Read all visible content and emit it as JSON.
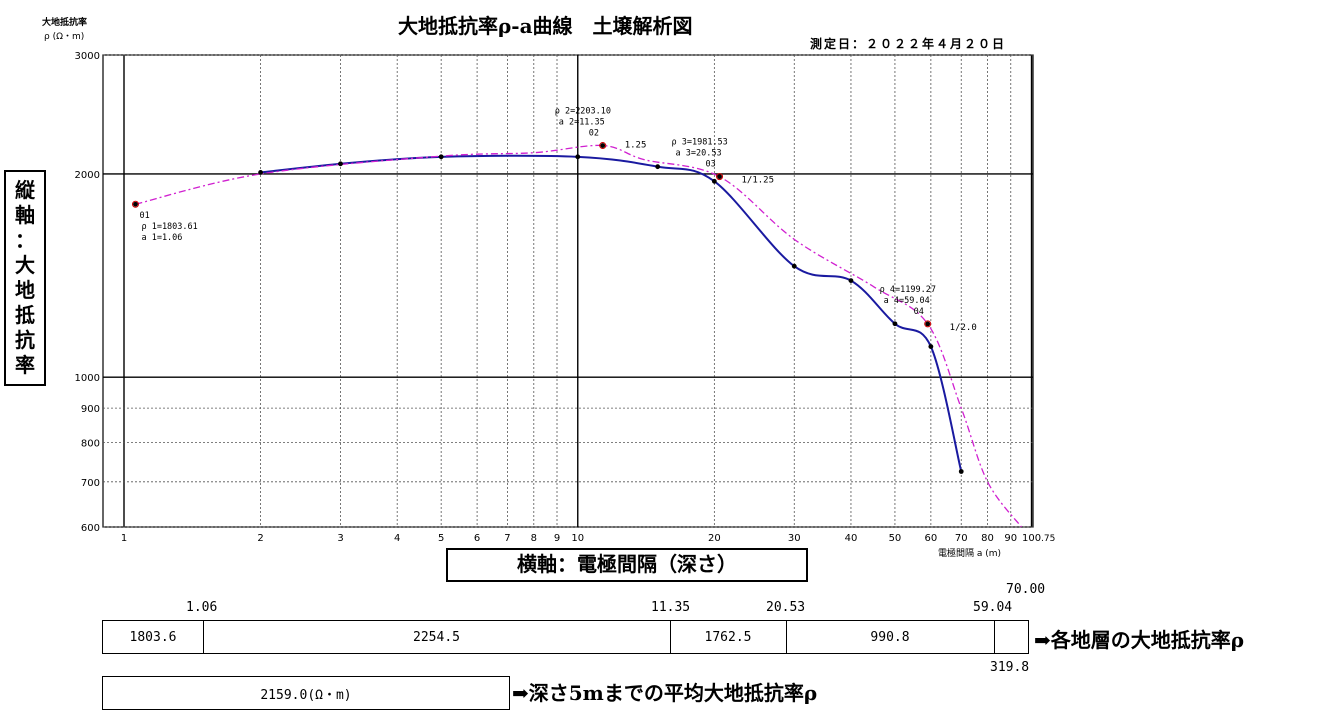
{
  "header": {
    "title": "大地抵抗率ρ-a曲線　土壌解析図",
    "date": "測定日：２０２２年４月２０日",
    "unit_top_line1": "大地抵抗率",
    "unit_top_line2": "ρ (Ω・m)",
    "x_unit": "電極間隔 a (m)"
  },
  "axis_boxes": {
    "vertical_chars": [
      "縦",
      "軸",
      "：",
      "大",
      "地",
      "抵",
      "抗",
      "率"
    ],
    "horizontal": "横軸：電極間隔（深さ）"
  },
  "chart_data": {
    "type": "line",
    "x_scale": "log",
    "y_scale": "log",
    "xlim": [
      1,
      100.75
    ],
    "ylim": [
      600,
      3000
    ],
    "x_ticks": [
      1,
      2,
      3,
      4,
      5,
      6,
      7,
      8,
      9,
      10,
      20,
      30,
      40,
      50,
      60,
      70,
      80,
      90,
      100
    ],
    "x_tick_labels": [
      "1",
      "2",
      "3",
      "4",
      "5",
      "6",
      "7",
      "8",
      "9",
      "10",
      "20",
      "30",
      "40",
      "50",
      "60",
      "70",
      "80",
      "90",
      "100"
    ],
    "x_end_label": ".75",
    "y_ticks": [
      600,
      700,
      800,
      900,
      1000,
      2000,
      3000
    ],
    "y_tick_labels": [
      "600",
      "700",
      "800",
      "900",
      "1000",
      "2000",
      "3000"
    ],
    "grid": true,
    "series": [
      {
        "style": "solid-blue",
        "color": "#1a1aa0",
        "x": [
          2.0,
          3.0,
          5.0,
          10.0,
          15.0,
          20.0,
          30.0,
          40.0,
          50.0,
          60.0,
          70.0
        ],
        "y": [
          2010,
          2070,
          2120,
          2120,
          2050,
          1950,
          1460,
          1390,
          1200,
          1110,
          725
        ]
      },
      {
        "style": "dashed-magenta",
        "color": "#d020d0",
        "x": [
          1.06,
          2.0,
          5.0,
          8.0,
          11.35,
          14.0,
          20.53,
          30.0,
          45.0,
          59.04,
          70.0,
          80.0,
          95.0
        ],
        "y": [
          1803.61,
          2000,
          2125,
          2150,
          2203.1,
          2100,
          1981.53,
          1600,
          1360,
          1199.27,
          900,
          700,
          600
        ]
      }
    ],
    "markers": [
      {
        "x": 1.06,
        "y": 1803.61
      },
      {
        "x": 2.0,
        "y": 2010
      },
      {
        "x": 3.0,
        "y": 2070
      },
      {
        "x": 5.0,
        "y": 2120
      },
      {
        "x": 10.0,
        "y": 2120
      },
      {
        "x": 11.35,
        "y": 2203.1
      },
      {
        "x": 15.0,
        "y": 2050
      },
      {
        "x": 20.0,
        "y": 1950
      },
      {
        "x": 20.53,
        "y": 1981.53
      },
      {
        "x": 30.0,
        "y": 1460
      },
      {
        "x": 40.0,
        "y": 1390
      },
      {
        "x": 50.0,
        "y": 1200
      },
      {
        "x": 59.04,
        "y": 1199.27
      },
      {
        "x": 60.0,
        "y": 1110
      },
      {
        "x": 70.0,
        "y": 725
      }
    ],
    "annotations": [
      {
        "id": "01",
        "x": 1.06,
        "y": 1803.61,
        "lines": [
          "01",
          "ρ 1=1803.61",
          "a 1=1.06"
        ],
        "place": "below"
      },
      {
        "id": "02",
        "x": 11.35,
        "y": 2203.1,
        "lines": [
          "ρ 2=2203.10",
          "a 2=11.35",
          "02"
        ],
        "place": "above",
        "slope": "1.25"
      },
      {
        "id": "03",
        "x": 20.53,
        "y": 1981.53,
        "lines": [
          "ρ 3=1981.53",
          "a 3=20.53",
          "03"
        ],
        "place": "above",
        "slope": "1/1.25"
      },
      {
        "id": "04",
        "x": 59.04,
        "y": 1199.27,
        "lines": [
          "ρ 4=1199.27",
          "a 4=59.04",
          "04"
        ],
        "place": "above",
        "slope": "1/2.0"
      }
    ]
  },
  "layers": {
    "boundaries": [
      "1.06",
      "11.35",
      "20.53",
      "59.04"
    ],
    "last_boundary": "70.00",
    "values": [
      "1803.6",
      "2254.5",
      "1762.5",
      "990.8",
      ""
    ],
    "last_value": "319.8",
    "caption": "➡各地層の大地抵抗率ρ"
  },
  "average": {
    "value": "2159.0(Ω・m)",
    "caption": "➡深さ5mまでの平均大地抵抗率ρ"
  }
}
